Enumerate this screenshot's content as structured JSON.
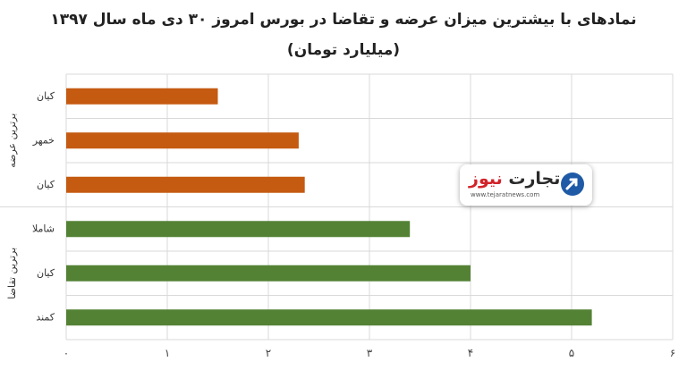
{
  "title": "نمادهای با بیشترین میزان عرضه و تقاضا در بورس امروز ۳۰ دی ماه سال ۱۳۹۷",
  "subtitle": "(میلیارد تومان)",
  "logo": {
    "name_part1": "تجارت",
    "name_part2": "نیوز",
    "url": "www.tejaratnews.com"
  },
  "chart_data": {
    "type": "bar",
    "orientation": "horizontal",
    "title": "نمادهای با بیشترین میزان عرضه و تقاضا در بورس امروز ۳۰ دی ماه سال ۱۳۹۷",
    "subtitle": "(میلیارد تومان)",
    "xlim": [
      0,
      6
    ],
    "x_ticks": [
      "۰",
      "۱",
      "۲",
      "۳",
      "۴",
      "۵",
      "۶"
    ],
    "grid": true,
    "groups": [
      {
        "label": "برترین عرضه",
        "color": "#c55a11",
        "bars": [
          {
            "category": "کیان",
            "value": 1.5
          },
          {
            "category": "خمهر",
            "value": 2.3
          },
          {
            "category": "کیان",
            "value": 2.36
          }
        ]
      },
      {
        "label": "برترین تقاضا",
        "color": "#548235",
        "bars": [
          {
            "category": "شاملا",
            "value": 3.4
          },
          {
            "category": "کیان",
            "value": 4.0
          },
          {
            "category": "کمند",
            "value": 5.2
          }
        ]
      }
    ]
  }
}
